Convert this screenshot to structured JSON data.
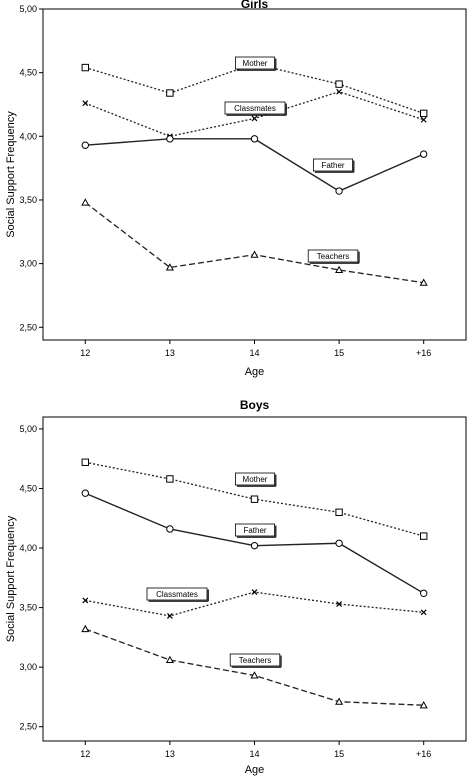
{
  "chart_data": [
    {
      "type": "line",
      "title": "Girls",
      "xlabel": "Age",
      "ylabel": "Social Support Frequency",
      "categories": [
        "12",
        "13",
        "14",
        "15",
        "+16"
      ],
      "ylim": [
        2.4,
        5.0
      ],
      "yticks": [
        "2,50",
        "3,00",
        "3,50",
        "4,00",
        "4,50",
        "5,00"
      ],
      "grid": false,
      "series": [
        {
          "name": "Mother",
          "marker": "square",
          "dash": "dotted",
          "values": [
            4.54,
            4.34,
            4.57,
            4.41,
            4.18
          ]
        },
        {
          "name": "Classmates",
          "marker": "x",
          "dash": "dotted",
          "values": [
            4.26,
            4.0,
            4.14,
            4.35,
            4.13
          ]
        },
        {
          "name": "Father",
          "marker": "circle",
          "dash": "solid",
          "values": [
            3.93,
            3.98,
            3.98,
            3.57,
            3.86
          ]
        },
        {
          "name": "Teachers",
          "marker": "triangle",
          "dash": "dashed",
          "values": [
            3.48,
            2.97,
            3.07,
            2.95,
            2.85
          ]
        }
      ]
    },
    {
      "type": "line",
      "title": "Boys",
      "xlabel": "Age",
      "ylabel": "Social Support Frequency",
      "categories": [
        "12",
        "13",
        "14",
        "15",
        "+16"
      ],
      "ylim": [
        2.38,
        5.1
      ],
      "yticks": [
        "2,50",
        "3,00",
        "3,50",
        "4,00",
        "4,50",
        "5,00"
      ],
      "grid": false,
      "series": [
        {
          "name": "Mother",
          "marker": "square",
          "dash": "dotted",
          "values": [
            4.72,
            4.58,
            4.41,
            4.3,
            4.1
          ]
        },
        {
          "name": "Father",
          "marker": "circle",
          "dash": "solid",
          "values": [
            4.46,
            4.16,
            4.02,
            4.04,
            3.62
          ]
        },
        {
          "name": "Classmates",
          "marker": "x",
          "dash": "dotted",
          "values": [
            3.56,
            3.43,
            3.63,
            3.53,
            3.46
          ]
        },
        {
          "name": "Teachers",
          "marker": "triangle",
          "dash": "dashed",
          "values": [
            3.32,
            3.06,
            2.93,
            2.71,
            2.68
          ]
        }
      ]
    }
  ]
}
